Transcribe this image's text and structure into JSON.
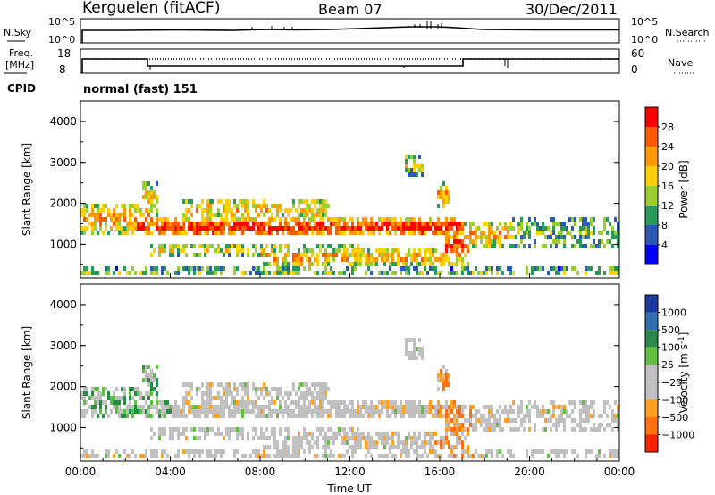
{
  "header": {
    "station": "Kerguelen (fitACF)",
    "beam": "Beam 07",
    "date": "30/Dec/2011"
  },
  "strip_noise": {
    "left_label": "N.Sky",
    "right_label": "N.Search",
    "ticks": [
      "10^5",
      "10^0"
    ]
  },
  "strip_freq": {
    "left_label_1": "Freq.",
    "left_label_2": "[MHz]",
    "right_label": "Nave",
    "left_ticks": [
      "18",
      "8"
    ],
    "right_ticks": [
      "60",
      "0"
    ]
  },
  "cpid": {
    "label": "CPID",
    "value": "normal (fast) 151"
  },
  "chart_data": [
    {
      "type": "heatmap",
      "name": "power",
      "ylabel": "Slant Range [km]",
      "ylim": [
        180,
        4500
      ],
      "yticks": [
        "4000",
        "3000",
        "2000",
        "1000"
      ],
      "colorbar_label": "Power [dB]",
      "colorbar_ticks": [
        "28",
        "24",
        "20",
        "16",
        "12",
        "8",
        "4"
      ],
      "colors": [
        "#0000ff",
        "#2a5ab4",
        "#2a9a5a",
        "#9acd32",
        "#ffd000",
        "#ff9a00",
        "#ff5a00",
        "#ff0000"
      ],
      "range": [
        0,
        32
      ]
    },
    {
      "type": "heatmap",
      "name": "velocity",
      "ylabel": "Slant Range [km]",
      "ylim": [
        180,
        4500
      ],
      "yticks": [
        "4000",
        "3000",
        "2000",
        "1000"
      ],
      "colorbar_label": "Velocity [m s-1]",
      "colorbar_ticks": [
        "1000",
        "500",
        "100",
        "25",
        "−25",
        "−100",
        "−500",
        "−1000"
      ],
      "colors": [
        "#1a3aa0",
        "#3070b0",
        "#2a8a4a",
        "#60c040",
        "#c0c0c0",
        "#c0c0c0",
        "#ffa020",
        "#ff7010",
        "#ff2000"
      ],
      "xlabel": "Time UT",
      "xticks": [
        "00:00",
        "04:00",
        "08:00",
        "12:00",
        "16:00",
        "20:00",
        "00:00"
      ]
    }
  ]
}
